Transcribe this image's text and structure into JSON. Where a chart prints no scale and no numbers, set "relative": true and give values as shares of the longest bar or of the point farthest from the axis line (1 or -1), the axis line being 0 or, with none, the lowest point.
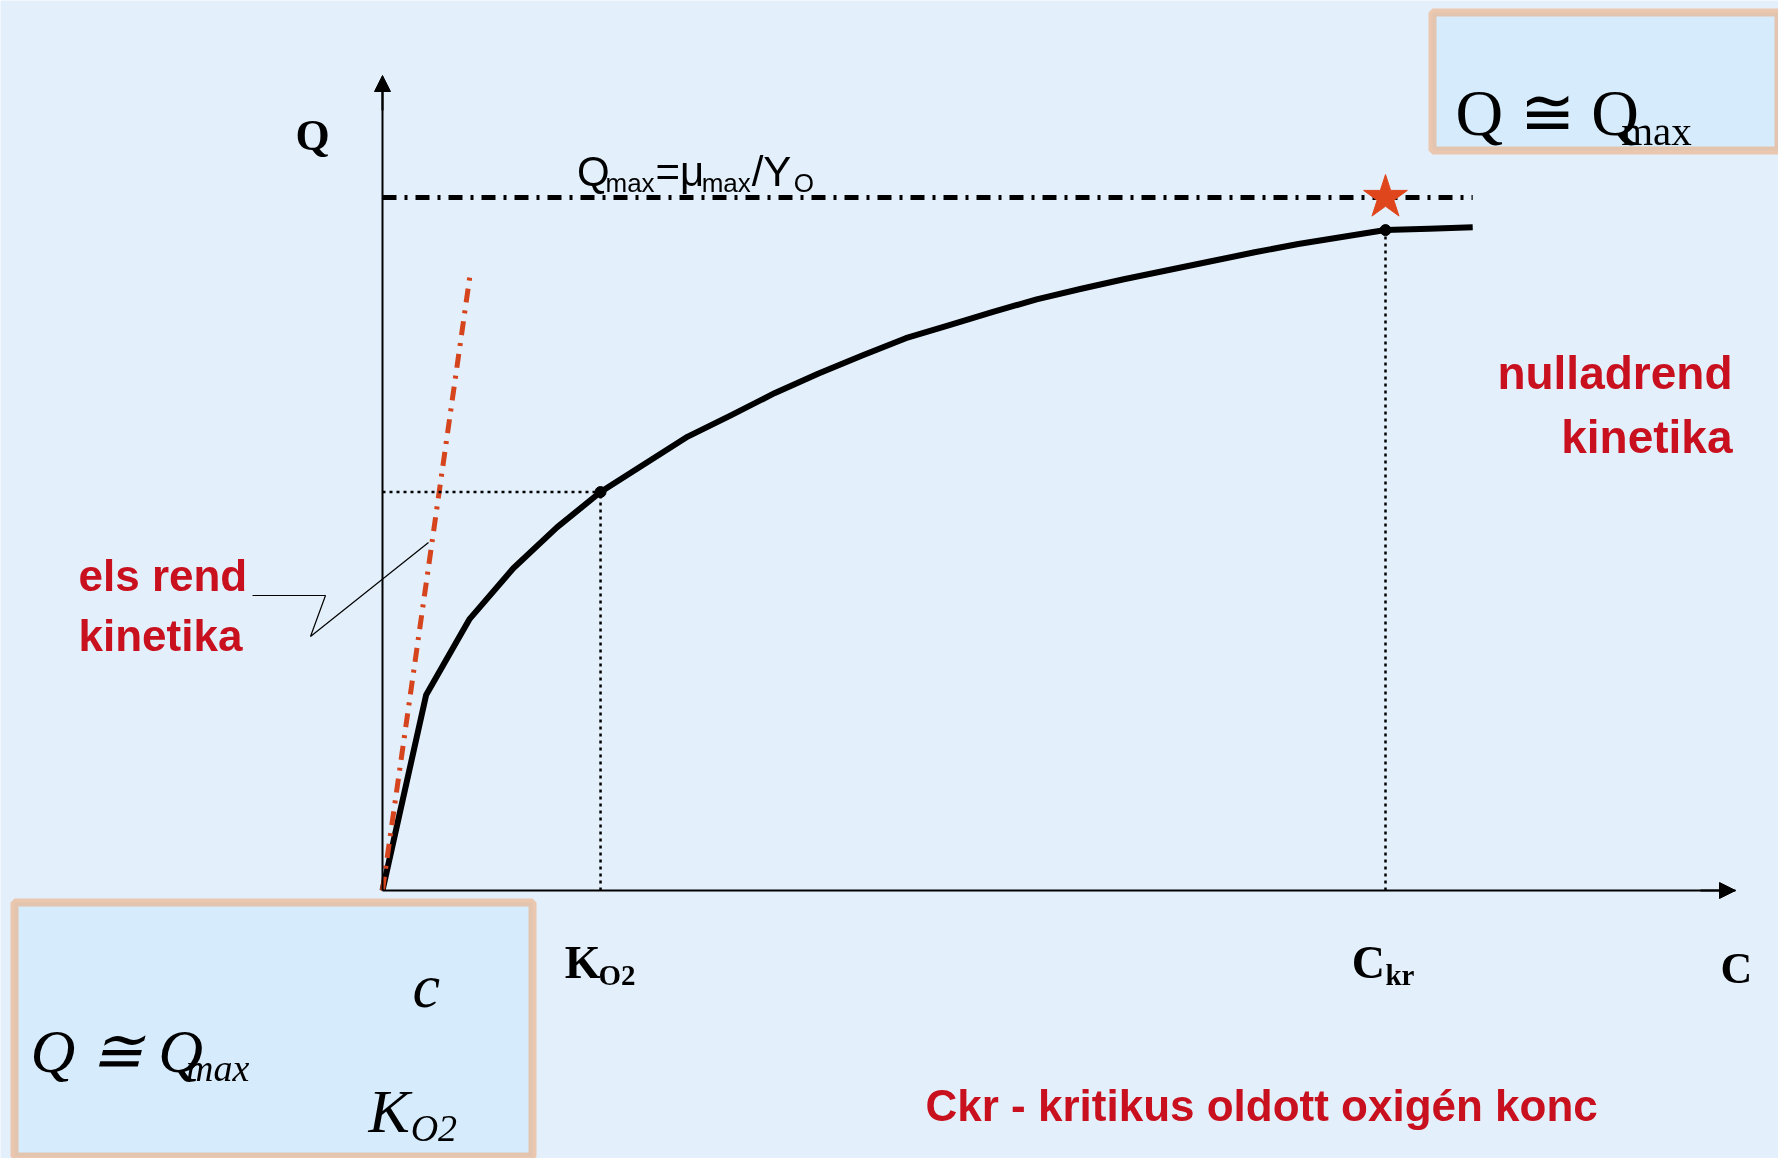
{
  "chart_data": {
    "type": "line",
    "relative": true,
    "categories": [
      null,
      null,
      null,
      null,
      null,
      "K$_{O2}$",
      null,
      null,
      null,
      null,
      null,
      null,
      null,
      null,
      null,
      null,
      null,
      null,
      null,
      null,
      null,
      null,
      null,
      "C$_{kr}$",
      null,
      null
    ],
    "series": [
      {
        "color": "#000000",
        "line_style": "solid",
        "values": [
          0,
          0.282,
          0.392,
          0.465,
          0.524,
          0.575,
          0.615,
          0.655,
          0.686,
          0.718,
          0.746,
          0.772,
          0.797,
          0.816,
          0.835,
          0.853,
          0.868,
          0.882,
          0.895,
          0.908,
          0.921,
          0.933,
          0.943,
          0.953,
          0.955,
          0.957
        ]
      },
      {
        "color": "#d5441c",
        "line_style": "dashed",
        "values": [
          0,
          0.4425,
          0.885,
          null,
          null,
          null,
          null,
          null,
          null,
          null,
          null,
          null,
          null,
          null,
          null,
          null,
          null,
          null,
          null,
          null,
          null,
          null,
          null,
          null,
          null,
          null
        ]
      },
      {
        "color": "#000000",
        "line_style": "dotted",
        "values": [
          0.575,
          0.575,
          0.575,
          0.575,
          0.575,
          0.575,
          null,
          null,
          null,
          null,
          null,
          null,
          null,
          null,
          null,
          null,
          null,
          null,
          null,
          null,
          null,
          null,
          null,
          null,
          null,
          null
        ]
      },
      {
        "type": "lollipop",
        "color": "#000000",
        "line_style": "dotted",
        "values": [
          null,
          null,
          null,
          null,
          null,
          0.575,
          null,
          null,
          null,
          null,
          null,
          null,
          null,
          null,
          null,
          null,
          null,
          null,
          null,
          null,
          null,
          null,
          null,
          0.953,
          null,
          null
        ]
      },
      {
        "name": "Q$_{max}$=μ$_{max}$/Y$_{O}$",
        "color": "#000000",
        "line_style": "dashed",
        "values": [
          1.0,
          1.0,
          1.0,
          1.0,
          1.0,
          1.0,
          1.0,
          1.0,
          1.0,
          1.0,
          1.0,
          1.0,
          1.0,
          1.0,
          1.0,
          1.0,
          1.0,
          1.0,
          1.0,
          1.0,
          1.0,
          1.0,
          1.0,
          1.0,
          1.0,
          1.0
        ]
      },
      {
        "type": "scatter",
        "marker": "star",
        "color": "#e0461c",
        "values": [
          null,
          null,
          null,
          null,
          null,
          null,
          null,
          null,
          null,
          null,
          null,
          null,
          null,
          null,
          null,
          null,
          null,
          null,
          null,
          null,
          null,
          null,
          null,
          1.0,
          null,
          null
        ]
      }
    ],
    "annotations": [
      "Q",
      "C",
      "Q ≅ Q$_{max}$",
      "Q ≅ Q$_{max}$",
      "c",
      "K$_{O2}$",
      "els  rend\nkinetika",
      "nulladrend\nkinetika",
      "Ckr - kritikus oldott oxigén konc"
    ],
    "grid": false
  }
}
